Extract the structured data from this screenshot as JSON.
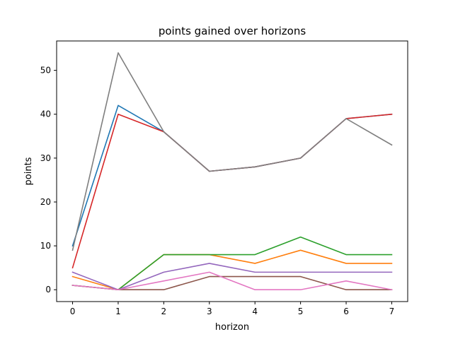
{
  "chart_data": {
    "type": "line",
    "title": "points gained over horizons",
    "xlabel": "horizon",
    "ylabel": "points",
    "x": [
      0,
      1,
      2,
      3,
      4,
      5,
      6,
      7
    ],
    "xlim": [
      -0.35,
      7.35
    ],
    "ylim": [
      -2.7,
      56.7
    ],
    "xticks": [
      0,
      1,
      2,
      3,
      4,
      5,
      6,
      7
    ],
    "yticks": [
      0,
      10,
      20,
      30,
      40,
      50
    ],
    "grid": false,
    "series": [
      {
        "color": "#1f77b4",
        "values": [
          10,
          42,
          36,
          27,
          28,
          30,
          39,
          40
        ]
      },
      {
        "color": "#ff7f0e",
        "values": [
          3,
          0,
          8,
          8,
          6,
          9,
          6,
          6
        ]
      },
      {
        "color": "#2ca02c",
        "values": [
          1,
          0,
          8,
          8,
          8,
          12,
          8,
          8
        ]
      },
      {
        "color": "#d62728",
        "values": [
          5,
          40,
          36,
          27,
          28,
          30,
          39,
          40
        ]
      },
      {
        "color": "#9467bd",
        "values": [
          4,
          0,
          4,
          6,
          4,
          4,
          4,
          4
        ]
      },
      {
        "color": "#8c564b",
        "values": [
          1,
          0,
          0,
          3,
          3,
          3,
          0,
          0
        ]
      },
      {
        "color": "#e377c2",
        "values": [
          1,
          0,
          2,
          4,
          0,
          0,
          2,
          0
        ]
      },
      {
        "color": "#7f7f7f",
        "values": [
          9,
          54,
          36,
          27,
          28,
          30,
          39,
          33
        ]
      }
    ]
  }
}
